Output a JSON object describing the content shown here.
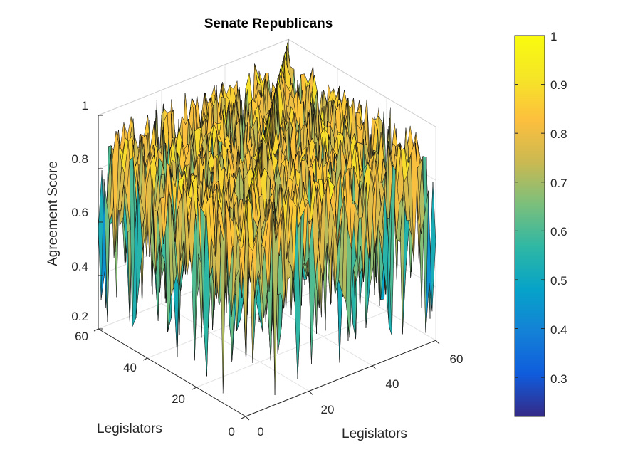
{
  "chart_data": {
    "type": "surface",
    "title": "Senate Republicans",
    "xlabel": "Legislators",
    "ylabel": "Legislators",
    "zlabel": "Agreement Score",
    "x_range": [
      0,
      60
    ],
    "y_range": [
      0,
      60
    ],
    "z_range": [
      0.2,
      1
    ],
    "x_ticks": [
      "0",
      "20",
      "40",
      "60"
    ],
    "y_ticks": [
      "0",
      "20",
      "40",
      "60"
    ],
    "z_ticks": [
      "0.2",
      "0.4",
      "0.6",
      "0.8",
      "1"
    ],
    "grid": true,
    "colorbar": {
      "colormap": "parula",
      "range": [
        0.22,
        1
      ],
      "ticks": [
        "0.3",
        "0.4",
        "0.5",
        "0.6",
        "0.7",
        "0.8",
        "0.9",
        "1"
      ]
    },
    "grid_size": 53,
    "diagonal_value": 1,
    "off_diagonal_range": [
      0.22,
      0.97
    ]
  }
}
